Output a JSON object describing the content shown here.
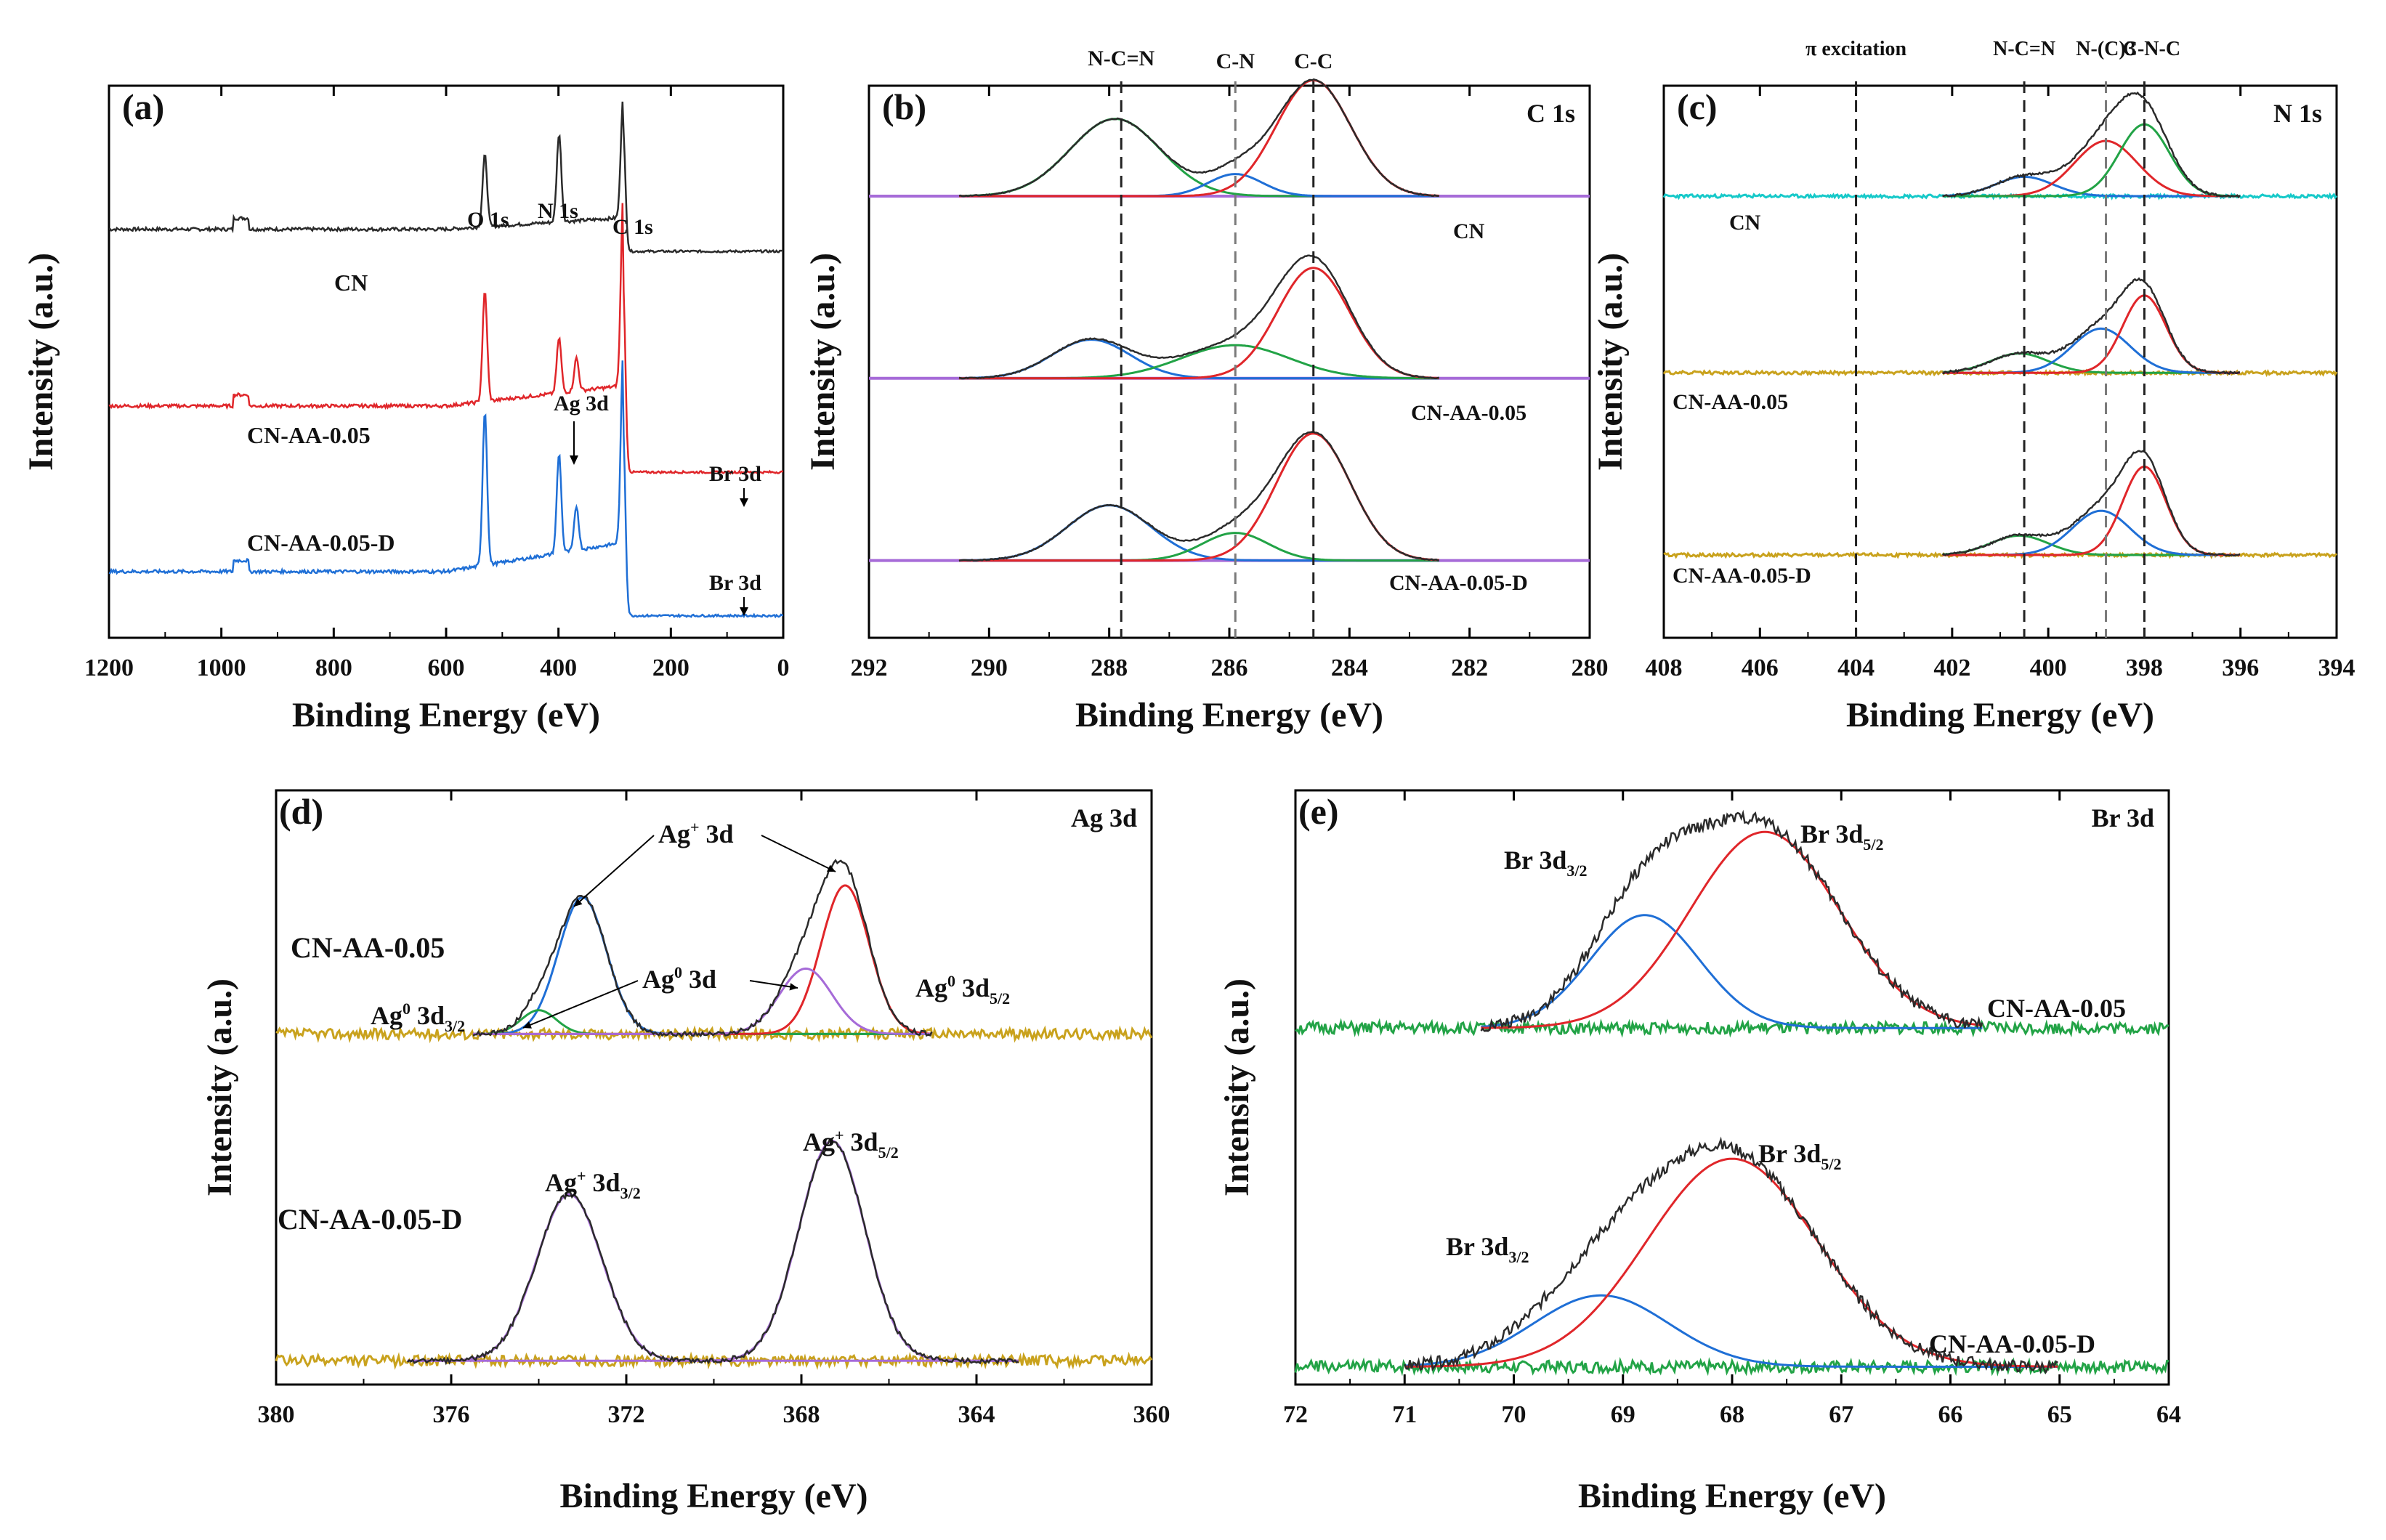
{
  "figure": {
    "caption_free": true,
    "colors": {
      "black": "#2b2b2b",
      "red": "#e0262a",
      "blue": "#1f6fd6",
      "green": "#22a346",
      "purple": "#a66bd8",
      "cyan": "#16c9c9",
      "olive": "#c9a21d",
      "gray_dash": "#7a7a7a"
    }
  },
  "chart_data": [
    {
      "id": "a",
      "type": "line",
      "panel_label": "(a)",
      "xlabel": "Binding Energy (eV)",
      "ylabel": "Intensity (a.u.)",
      "xlim": [
        1200,
        0
      ],
      "xticks": [
        "1200",
        "1000",
        "800",
        "600",
        "400",
        "200",
        "0"
      ],
      "xtick_values": [
        1200,
        1000,
        800,
        600,
        400,
        200,
        0
      ],
      "peak_labels": [
        {
          "text": "O 1s",
          "x": 531
        },
        {
          "text": "N 1s",
          "x": 399
        },
        {
          "text": "C 1s",
          "x": 285
        },
        {
          "text": "Ag 3d",
          "x": 368
        },
        {
          "text": "Br 3d",
          "x": 68
        },
        {
          "text": "Br 3d",
          "x": 68
        }
      ],
      "series": [
        {
          "name": "CN",
          "color": "black",
          "baseline": 0.74,
          "slope": 0.04,
          "peaks": [
            [
              531,
              0.13,
              4
            ],
            [
              399,
              0.16,
              4
            ],
            [
              285,
              0.22,
              4
            ]
          ],
          "step_at": 285,
          "after": 0.7
        },
        {
          "name": "CN-AA-0.05",
          "color": "red",
          "baseline": 0.42,
          "slope": 0.07,
          "peaks": [
            [
              531,
              0.2,
              4
            ],
            [
              399,
              0.1,
              4
            ],
            [
              368,
              0.06,
              4
            ],
            [
              285,
              0.34,
              4
            ]
          ],
          "step_at": 285,
          "after": 0.3
        },
        {
          "name": "CN-AA-0.05-D",
          "color": "blue",
          "baseline": 0.12,
          "slope": 0.1,
          "peaks": [
            [
              531,
              0.28,
              4
            ],
            [
              399,
              0.18,
              4
            ],
            [
              368,
              0.08,
              4
            ],
            [
              285,
              0.34,
              4
            ]
          ],
          "step_at": 285,
          "after": 0.04
        }
      ]
    },
    {
      "id": "b",
      "type": "line",
      "panel_label": "(b)",
      "region_label": "C 1s",
      "xlabel": "Binding Energy (eV)",
      "ylabel": "Intensity (a.u.)",
      "xlim": [
        292,
        280
      ],
      "xticks": [
        "292",
        "290",
        "288",
        "286",
        "284",
        "282",
        "280"
      ],
      "xtick_values": [
        292,
        290,
        288,
        286,
        284,
        282,
        280
      ],
      "reference_lines": [
        {
          "label": "N-C=N",
          "x": 287.8,
          "style": "black"
        },
        {
          "label": "C-N",
          "x": 285.9,
          "style": "gray"
        },
        {
          "label": "C-C",
          "x": 284.6,
          "style": "black"
        }
      ],
      "series": [
        {
          "name": "CN",
          "baseline": 0.8,
          "fit_range": [
            290.5,
            282.5
          ],
          "components": [
            {
              "center": 287.9,
              "height": 0.14,
              "sigma": 0.75,
              "color": "green"
            },
            {
              "center": 285.9,
              "height": 0.04,
              "sigma": 0.45,
              "color": "blue"
            },
            {
              "center": 284.6,
              "height": 0.21,
              "sigma": 0.62,
              "color": "red"
            }
          ]
        },
        {
          "name": "CN-AA-0.05",
          "baseline": 0.47,
          "fit_range": [
            290.5,
            282.5
          ],
          "components": [
            {
              "center": 288.3,
              "height": 0.07,
              "sigma": 0.65,
              "color": "blue"
            },
            {
              "center": 285.9,
              "height": 0.06,
              "sigma": 0.9,
              "color": "green"
            },
            {
              "center": 284.6,
              "height": 0.2,
              "sigma": 0.6,
              "color": "red"
            }
          ]
        },
        {
          "name": "CN-AA-0.05-D",
          "baseline": 0.14,
          "fit_range": [
            290.5,
            282.5
          ],
          "components": [
            {
              "center": 288.0,
              "height": 0.1,
              "sigma": 0.7,
              "color": "blue"
            },
            {
              "center": 285.9,
              "height": 0.05,
              "sigma": 0.55,
              "color": "green"
            },
            {
              "center": 284.6,
              "height": 0.23,
              "sigma": 0.62,
              "color": "red"
            }
          ]
        }
      ]
    },
    {
      "id": "c",
      "type": "line",
      "panel_label": "(c)",
      "region_label": "N 1s",
      "xlabel": "Binding Energy (eV)",
      "ylabel": "Intensity (a.u.)",
      "xlim": [
        408,
        394
      ],
      "xticks": [
        "408",
        "406",
        "404",
        "402",
        "400",
        "398",
        "396",
        "394"
      ],
      "xtick_values": [
        408,
        406,
        404,
        402,
        400,
        398,
        396,
        394
      ],
      "reference_lines": [
        {
          "label": "π excitation",
          "x": 404.0,
          "style": "black"
        },
        {
          "label": "N-C=N",
          "x": 400.5,
          "style": "black"
        },
        {
          "label": "N-(C)3",
          "x": 398.8,
          "style": "gray"
        },
        {
          "label": "C-N-C",
          "x": 398.0,
          "style": "black"
        }
      ],
      "series": [
        {
          "name": "CN",
          "baseline": 0.8,
          "base_color": "cyan",
          "fit_range": [
            402.2,
            396.0
          ],
          "components": [
            {
              "center": 400.5,
              "height": 0.035,
              "sigma": 0.6,
              "color": "blue"
            },
            {
              "center": 398.8,
              "height": 0.1,
              "sigma": 0.65,
              "color": "red"
            },
            {
              "center": 398.0,
              "height": 0.13,
              "sigma": 0.52,
              "color": "green"
            }
          ]
        },
        {
          "name": "CN-AA-0.05",
          "baseline": 0.48,
          "base_color": "olive",
          "fit_range": [
            402.2,
            396.0
          ],
          "components": [
            {
              "center": 400.6,
              "height": 0.035,
              "sigma": 0.6,
              "color": "green"
            },
            {
              "center": 398.9,
              "height": 0.08,
              "sigma": 0.6,
              "color": "blue"
            },
            {
              "center": 398.0,
              "height": 0.14,
              "sigma": 0.45,
              "color": "red"
            }
          ]
        },
        {
          "name": "CN-AA-0.05-D",
          "baseline": 0.15,
          "base_color": "olive",
          "fit_range": [
            402.2,
            396.0
          ],
          "components": [
            {
              "center": 400.6,
              "height": 0.035,
              "sigma": 0.6,
              "color": "green"
            },
            {
              "center": 398.9,
              "height": 0.08,
              "sigma": 0.6,
              "color": "blue"
            },
            {
              "center": 398.0,
              "height": 0.16,
              "sigma": 0.45,
              "color": "red"
            }
          ]
        }
      ]
    },
    {
      "id": "d",
      "type": "line",
      "panel_label": "(d)",
      "region_label": "Ag 3d",
      "xlabel": "Binding Energy (eV)",
      "ylabel": "Intensity (a.u.)",
      "xlim": [
        380,
        360
      ],
      "xticks": [
        "380",
        "376",
        "372",
        "368",
        "364",
        "360"
      ],
      "xtick_values": [
        380,
        376,
        372,
        368,
        364,
        360
      ],
      "annotations": [
        {
          "main": "Ag",
          "sup": "+",
          "rest": " 3d"
        },
        {
          "main": "Ag",
          "sup": "0",
          "rest": " 3d"
        },
        {
          "main": "Ag",
          "sup": "0",
          "rest": " 3d",
          "sub": "3/2"
        },
        {
          "main": "Ag",
          "sup": "0",
          "rest": " 3d",
          "sub": "5/2"
        },
        {
          "main": "Ag",
          "sup": "+",
          "rest": " 3d",
          "sub": "3/2"
        },
        {
          "main": "Ag",
          "sup": "+",
          "rest": " 3d",
          "sub": "5/2"
        }
      ],
      "series": [
        {
          "name": "CN-AA-0.05",
          "baseline": 0.59,
          "fit_range": [
            375.5,
            365.0
          ],
          "components": [
            {
              "center": 373.0,
              "height": 0.23,
              "sigma": 0.55,
              "color": "blue"
            },
            {
              "center": 374.0,
              "height": 0.04,
              "sigma": 0.4,
              "color": "green"
            },
            {
              "center": 367.0,
              "height": 0.25,
              "sigma": 0.55,
              "color": "red"
            },
            {
              "center": 367.9,
              "height": 0.11,
              "sigma": 0.6,
              "color": "purple"
            }
          ]
        },
        {
          "name": "CN-AA-0.05-D",
          "baseline": 0.04,
          "fit_range": [
            377.0,
            363.0
          ],
          "components": [
            {
              "center": 373.3,
              "height": 0.28,
              "sigma": 0.75,
              "color": "purple"
            },
            {
              "center": 367.3,
              "height": 0.37,
              "sigma": 0.75,
              "color": "purple"
            }
          ]
        }
      ]
    },
    {
      "id": "e",
      "type": "line",
      "panel_label": "(e)",
      "region_label": "Br 3d",
      "xlabel": "Binding Energy (eV)",
      "ylabel": "Intensity (a.u.)",
      "xlim": [
        72,
        64
      ],
      "xticks": [
        "72",
        "71",
        "70",
        "69",
        "68",
        "67",
        "66",
        "65",
        "64"
      ],
      "xtick_values": [
        72,
        71,
        70,
        69,
        68,
        67,
        66,
        65,
        64
      ],
      "annotations": [
        {
          "main": "Br 3d",
          "sub": "3/2"
        },
        {
          "main": "Br 3d",
          "sub": "5/2"
        },
        {
          "main": "Br 3d",
          "sub": "5/2"
        },
        {
          "main": "Br 3d",
          "sub": "3/2"
        }
      ],
      "series": [
        {
          "name": "CN-AA-0.05",
          "baseline": 0.6,
          "fit_range": [
            70.3,
            65.7
          ],
          "components": [
            {
              "center": 68.8,
              "height": 0.19,
              "sigma": 0.5,
              "color": "blue"
            },
            {
              "center": 67.7,
              "height": 0.33,
              "sigma": 0.68,
              "color": "red"
            }
          ]
        },
        {
          "name": "CN-AA-0.05-D",
          "baseline": 0.03,
          "fit_range": [
            71.0,
            65.0
          ],
          "components": [
            {
              "center": 69.2,
              "height": 0.12,
              "sigma": 0.62,
              "color": "blue"
            },
            {
              "center": 68.0,
              "height": 0.35,
              "sigma": 0.78,
              "color": "red"
            }
          ]
        }
      ]
    }
  ]
}
